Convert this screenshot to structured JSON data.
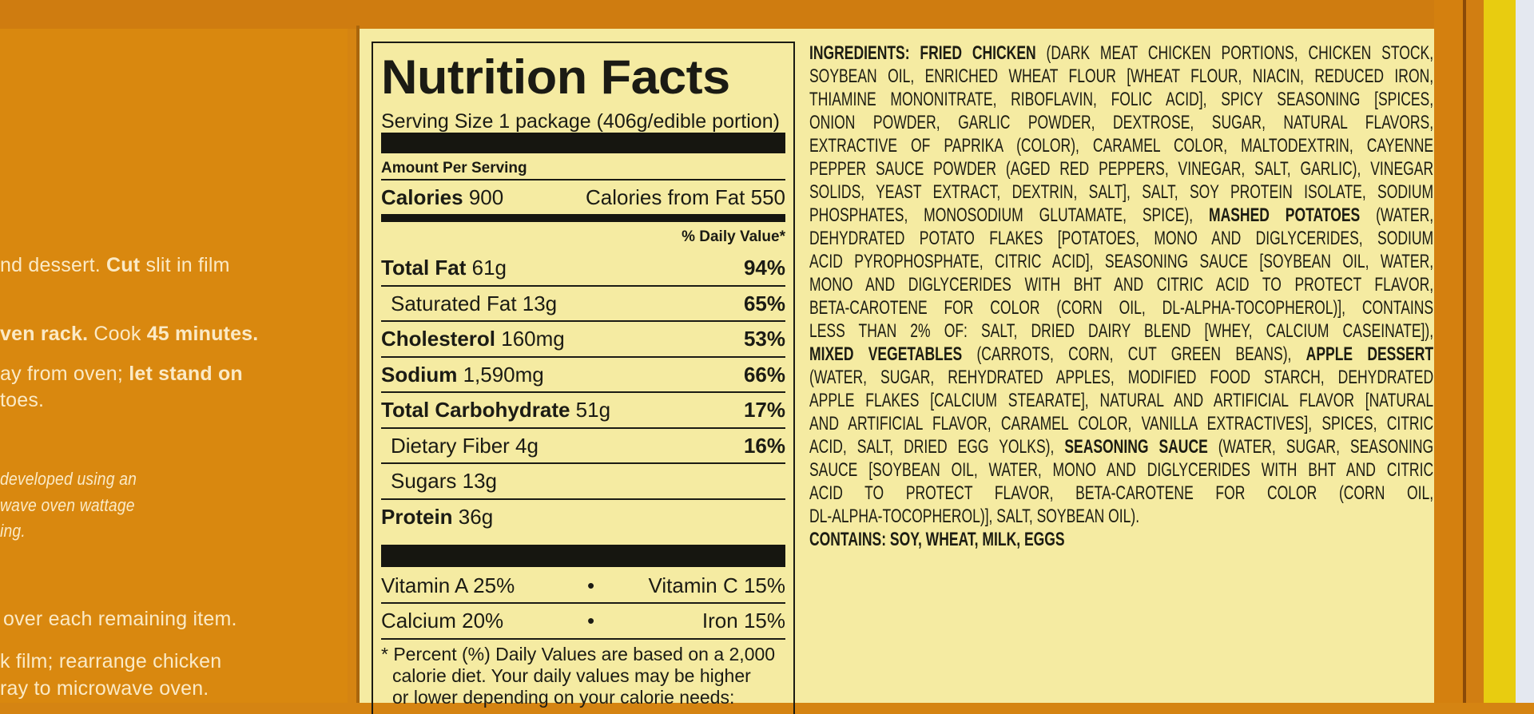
{
  "instructions": {
    "lines": [
      [
        {
          "t": "nd dessert. ",
          "b": false
        },
        {
          "t": "Cut",
          "b": true
        },
        {
          "t": " slit in film",
          "b": false
        }
      ],
      [
        {
          "t": "ven rack.",
          "b": true
        },
        {
          "t": " Cook ",
          "b": false
        },
        {
          "t": "45 minutes.",
          "b": true
        }
      ],
      [
        {
          "t": "ay from oven; ",
          "b": false
        },
        {
          "t": "let stand on",
          "b": true
        }
      ],
      [
        {
          "t": "toes.",
          "b": false
        }
      ],
      [
        {
          "t": "over each remaining item.",
          "b": false
        }
      ],
      [
        {
          "t": "k film; rearrange chicken",
          "b": false
        }
      ],
      [
        {
          "t": "ray to microwave oven.",
          "b": false
        }
      ]
    ],
    "italic_lines": [
      "developed using an",
      "wave oven wattage",
      "ing."
    ]
  },
  "nutrition": {
    "title": "Nutrition Facts",
    "serving_size": "Serving Size 1 package (406g/edible portion)",
    "amount_per_serving": "Amount Per Serving",
    "calories_label": "Calories",
    "calories": "900",
    "calories_from_fat": "Calories from Fat 550",
    "daily_value_header": "% Daily Value*",
    "rows": [
      {
        "label": "Total Fat",
        "amount": "61g",
        "dv": "94%",
        "bold": true,
        "indent": false
      },
      {
        "label": "Saturated Fat",
        "amount": "13g",
        "dv": "65%",
        "bold": false,
        "indent": true
      },
      {
        "label": "Cholesterol",
        "amount": "160mg",
        "dv": "53%",
        "bold": true,
        "indent": false
      },
      {
        "label": "Sodium",
        "amount": "1,590mg",
        "dv": "66%",
        "bold": true,
        "indent": false
      },
      {
        "label": "Total Carbohydrate",
        "amount": "51g",
        "dv": "17%",
        "bold": true,
        "indent": false
      },
      {
        "label": "Dietary Fiber",
        "amount": "4g",
        "dv": "16%",
        "bold": false,
        "indent": true
      },
      {
        "label": "Sugars",
        "amount": "13g",
        "dv": "",
        "bold": false,
        "indent": true
      },
      {
        "label": "Protein",
        "amount": "36g",
        "dv": "",
        "bold": true,
        "indent": false
      }
    ],
    "vitamin_a": "Vitamin A 25%",
    "vitamin_c": "Vitamin C 15%",
    "calcium": "Calcium 20%",
    "iron": "Iron 15%",
    "bullet": "•",
    "footnote": [
      "* Percent (%) Daily Values are based on a 2,000",
      "calorie diet. Your daily values may be higher",
      "or lower depending on your calorie needs:"
    ]
  },
  "ingredients": {
    "lines": [
      [
        {
          "t": "INGREDIENTS: FRIED CHICKEN",
          "b": true
        },
        {
          "t": " (DARK MEAT CHICKEN PORTIONS, CHICKEN STOCK,",
          "b": false
        }
      ],
      [
        {
          "t": "SOYBEAN OIL, ENRICHED WHEAT FLOUR [WHEAT FLOUR, NIACIN, REDUCED IRON,",
          "b": false
        }
      ],
      [
        {
          "t": "THIAMINE MONONITRATE, RIBOFLAVIN, FOLIC ACID], SPICY SEASONING [SPICES,",
          "b": false
        }
      ],
      [
        {
          "t": "ONION POWDER, GARLIC POWDER, DEXTROSE, SUGAR, NATURAL FLAVORS,",
          "b": false
        }
      ],
      [
        {
          "t": "EXTRACTIVE OF PAPRIKA (COLOR), CARAMEL COLOR, MALTODEXTRIN, CAYENNE",
          "b": false
        }
      ],
      [
        {
          "t": "PEPPER SAUCE POWDER (AGED RED PEPPERS, VINEGAR, SALT, GARLIC), VINEGAR",
          "b": false
        }
      ],
      [
        {
          "t": "SOLIDS, YEAST EXTRACT, DEXTRIN, SALT], SALT, SOY PROTEIN ISOLATE, SODIUM",
          "b": false
        }
      ],
      [
        {
          "t": "PHOSPHATES, MONOSODIUM GLUTAMATE, SPICE), ",
          "b": false
        },
        {
          "t": "MASHED POTATOES",
          "b": true
        },
        {
          "t": " (WATER,",
          "b": false
        }
      ],
      [
        {
          "t": "DEHYDRATED POTATO FLAKES [POTATOES, MONO AND DIGLYCERIDES, SODIUM",
          "b": false
        }
      ],
      [
        {
          "t": "ACID PYROPHOSPHATE, CITRIC ACID], SEASONING SAUCE [SOYBEAN OIL, WATER,",
          "b": false
        }
      ],
      [
        {
          "t": "MONO AND DIGLYCERIDES WITH BHT AND CITRIC ACID TO PROTECT FLAVOR,",
          "b": false
        }
      ],
      [
        {
          "t": "BETA-CAROTENE FOR COLOR (CORN OIL, DL-ALPHA-TOCOPHEROL)], CONTAINS",
          "b": false
        }
      ],
      [
        {
          "t": "LESS THAN 2% OF: SALT, DRIED DAIRY BLEND [WHEY, CALCIUM CASEINATE]),",
          "b": false
        }
      ],
      [
        {
          "t": "MIXED VEGETABLES",
          "b": true
        },
        {
          "t": " (CARROTS, CORN, CUT GREEN BEANS), ",
          "b": false
        },
        {
          "t": "APPLE DESSERT",
          "b": true
        }
      ],
      [
        {
          "t": "(WATER, SUGAR, REHYDRATED APPLES, MODIFIED FOOD STARCH, DEHYDRATED",
          "b": false
        }
      ],
      [
        {
          "t": "APPLE FLAKES [CALCIUM STEARATE], NATURAL AND ARTIFICIAL FLAVOR [NATURAL",
          "b": false
        }
      ],
      [
        {
          "t": "AND ARTIFICIAL FLAVOR, CARAMEL COLOR, VANILLA EXTRACTIVES], SPICES, CITRIC",
          "b": false
        }
      ],
      [
        {
          "t": "ACID, SALT, DRIED EGG YOLKS), ",
          "b": false
        },
        {
          "t": "SEASONING SAUCE",
          "b": true
        },
        {
          "t": " (WATER, SUGAR, SEASONING",
          "b": false
        }
      ],
      [
        {
          "t": "SAUCE [SOYBEAN OIL, WATER, MONO AND DIGLYCERIDES WITH BHT AND CITRIC",
          "b": false
        }
      ],
      [
        {
          "t": "ACID TO PROTECT FLAVOR, BETA-CAROTENE FOR COLOR (CORN OIL,",
          "b": false
        }
      ],
      [
        {
          "t": "DL-ALPHA-TOCOPHEROL)], SALT, SOYBEAN OIL).",
          "b": false
        }
      ]
    ],
    "contains": "CONTAINS: SOY, WHEAT, MILK, EGGS"
  },
  "colors": {
    "package_orange": "#d58412",
    "label_cream": "#f5eba2",
    "text_dark": "#1b1b14",
    "instruction_text": "#fbeac6",
    "edge_yellow": "#e8cc10"
  }
}
